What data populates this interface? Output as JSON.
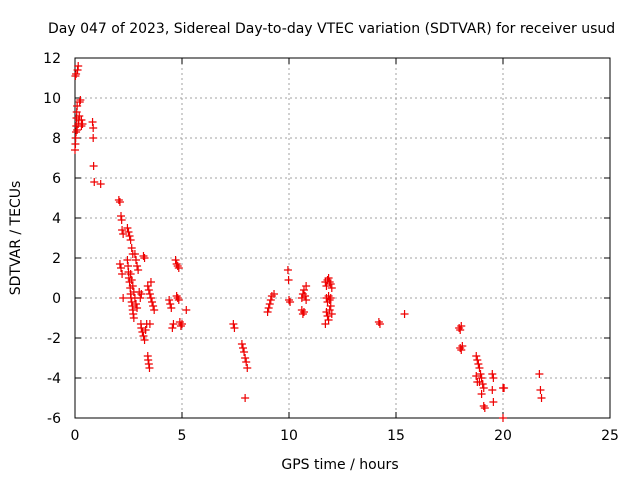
{
  "chart_data": {
    "type": "scatter",
    "title": "Day 047 of 2023, Sidereal Day-to-day VTEC variation (SDTVAR) for receiver usud",
    "xlabel": "GPS time / hours",
    "ylabel": "SDTVAR / TECUs",
    "xlim": [
      0,
      25
    ],
    "ylim": [
      -6,
      12
    ],
    "xticks": [
      0,
      5,
      10,
      15,
      20,
      25
    ],
    "yticks": [
      -6,
      -4,
      -2,
      0,
      2,
      4,
      6,
      8,
      10,
      12
    ],
    "xtick_labels": [
      "0",
      "5",
      "10",
      "15",
      "20",
      "25"
    ],
    "ytick_labels": [
      "-6",
      "-4",
      "-2",
      "0",
      "2",
      "4",
      "6",
      "8",
      "10",
      "12"
    ],
    "grid": true,
    "marker": "+",
    "color": "#ee0000",
    "series": [
      {
        "name": "SDTVAR",
        "points": [
          [
            0.0,
            7.4
          ],
          [
            0.02,
            7.7
          ],
          [
            0.03,
            8.0
          ],
          [
            0.05,
            8.3
          ],
          [
            0.06,
            8.6
          ],
          [
            0.07,
            9.0
          ],
          [
            0.08,
            9.3
          ],
          [
            0.1,
            9.6
          ],
          [
            0.02,
            11.1
          ],
          [
            0.05,
            11.2
          ],
          [
            0.12,
            11.4
          ],
          [
            0.15,
            11.6
          ],
          [
            0.1,
            8.4
          ],
          [
            0.15,
            8.7
          ],
          [
            0.18,
            8.9
          ],
          [
            0.2,
            9.1
          ],
          [
            0.22,
            9.8
          ],
          [
            0.25,
            9.9
          ],
          [
            0.3,
            8.6
          ],
          [
            0.3,
            8.9
          ],
          [
            0.35,
            8.7
          ],
          [
            0.82,
            8.8
          ],
          [
            0.85,
            8.5
          ],
          [
            0.85,
            8.0
          ],
          [
            0.87,
            6.6
          ],
          [
            0.9,
            5.8
          ],
          [
            1.2,
            5.7
          ],
          [
            2.05,
            4.9
          ],
          [
            2.1,
            4.8
          ],
          [
            2.15,
            4.1
          ],
          [
            2.18,
            3.9
          ],
          [
            2.2,
            3.4
          ],
          [
            2.25,
            3.2
          ],
          [
            2.1,
            1.7
          ],
          [
            2.15,
            1.5
          ],
          [
            2.2,
            1.2
          ],
          [
            2.25,
            0.0
          ],
          [
            2.45,
            3.5
          ],
          [
            2.5,
            3.3
          ],
          [
            2.55,
            3.1
          ],
          [
            2.6,
            2.9
          ],
          [
            2.65,
            2.5
          ],
          [
            2.7,
            2.2
          ],
          [
            2.45,
            1.9
          ],
          [
            2.48,
            1.6
          ],
          [
            2.5,
            1.3
          ],
          [
            2.52,
            1.0
          ],
          [
            2.55,
            0.8
          ],
          [
            2.58,
            0.5
          ],
          [
            2.6,
            0.2
          ],
          [
            2.62,
            0.0
          ],
          [
            2.65,
            -0.2
          ],
          [
            2.68,
            -0.4
          ],
          [
            2.7,
            -0.6
          ],
          [
            2.72,
            -0.8
          ],
          [
            2.75,
            -1.0
          ],
          [
            2.6,
            1.2
          ],
          [
            2.65,
            0.9
          ],
          [
            2.7,
            0.6
          ],
          [
            2.75,
            0.3
          ],
          [
            2.8,
            0.0
          ],
          [
            2.85,
            -0.3
          ],
          [
            2.9,
            -0.5
          ],
          [
            2.8,
            2.2
          ],
          [
            2.85,
            1.9
          ],
          [
            2.9,
            1.6
          ],
          [
            2.95,
            1.4
          ],
          [
            3.0,
            0.3
          ],
          [
            3.05,
            0.0
          ],
          [
            3.08,
            -1.3
          ],
          [
            3.1,
            -1.5
          ],
          [
            3.15,
            -1.7
          ],
          [
            3.2,
            -1.9
          ],
          [
            3.25,
            -2.1
          ],
          [
            3.3,
            -1.6
          ],
          [
            3.35,
            -1.3
          ],
          [
            3.1,
            0.2
          ],
          [
            3.2,
            2.1
          ],
          [
            3.25,
            2.0
          ],
          [
            3.4,
            -2.9
          ],
          [
            3.42,
            -3.1
          ],
          [
            3.45,
            -3.3
          ],
          [
            3.48,
            -3.5
          ],
          [
            3.5,
            -1.3
          ],
          [
            3.4,
            0.6
          ],
          [
            3.45,
            0.4
          ],
          [
            3.5,
            0.2
          ],
          [
            3.55,
            0.0
          ],
          [
            3.6,
            -0.2
          ],
          [
            3.65,
            -0.4
          ],
          [
            3.7,
            -0.6
          ],
          [
            3.55,
            0.8
          ],
          [
            4.4,
            -0.1
          ],
          [
            4.45,
            -0.3
          ],
          [
            4.5,
            -0.5
          ],
          [
            4.55,
            -1.5
          ],
          [
            4.6,
            -1.3
          ],
          [
            4.7,
            1.9
          ],
          [
            4.75,
            1.7
          ],
          [
            4.8,
            1.6
          ],
          [
            4.85,
            1.5
          ],
          [
            4.75,
            0.1
          ],
          [
            4.8,
            0.0
          ],
          [
            4.85,
            -0.1
          ],
          [
            4.9,
            -1.2
          ],
          [
            4.95,
            -1.4
          ],
          [
            5.0,
            -1.3
          ],
          [
            5.2,
            -0.6
          ],
          [
            7.4,
            -1.3
          ],
          [
            7.45,
            -1.5
          ],
          [
            7.8,
            -2.3
          ],
          [
            7.85,
            -2.5
          ],
          [
            7.9,
            -2.7
          ],
          [
            7.95,
            -3.0
          ],
          [
            8.0,
            -3.2
          ],
          [
            8.05,
            -3.5
          ],
          [
            7.95,
            -5.0
          ],
          [
            9.0,
            -0.7
          ],
          [
            9.05,
            -0.5
          ],
          [
            9.1,
            -0.3
          ],
          [
            9.15,
            -0.1
          ],
          [
            9.2,
            0.1
          ],
          [
            9.3,
            0.2
          ],
          [
            9.95,
            1.4
          ],
          [
            9.98,
            0.9
          ],
          [
            10.0,
            -0.1
          ],
          [
            10.05,
            -0.2
          ],
          [
            10.6,
            0.0
          ],
          [
            10.65,
            0.2
          ],
          [
            10.7,
            0.4
          ],
          [
            10.75,
            0.1
          ],
          [
            10.8,
            -0.1
          ],
          [
            10.6,
            -0.6
          ],
          [
            10.65,
            -0.8
          ],
          [
            10.7,
            -0.7
          ],
          [
            10.8,
            0.6
          ],
          [
            11.7,
            0.8
          ],
          [
            11.75,
            0.6
          ],
          [
            11.8,
            0.9
          ],
          [
            11.85,
            1.0
          ],
          [
            11.9,
            0.8
          ],
          [
            11.95,
            0.7
          ],
          [
            11.75,
            0.0
          ],
          [
            11.8,
            -0.2
          ],
          [
            11.85,
            0.1
          ],
          [
            11.9,
            -0.1
          ],
          [
            11.95,
            0.0
          ],
          [
            11.75,
            -0.7
          ],
          [
            11.8,
            -0.9
          ],
          [
            11.85,
            -1.1
          ],
          [
            11.7,
            -1.3
          ],
          [
            11.9,
            -0.6
          ],
          [
            11.95,
            -0.4
          ],
          [
            12.0,
            -0.8
          ],
          [
            12.0,
            0.5
          ],
          [
            14.2,
            -1.2
          ],
          [
            14.25,
            -1.3
          ],
          [
            15.4,
            -0.8
          ],
          [
            17.95,
            -1.5
          ],
          [
            18.0,
            -1.6
          ],
          [
            18.05,
            -1.4
          ],
          [
            18.0,
            -2.5
          ],
          [
            18.05,
            -2.6
          ],
          [
            18.1,
            -2.4
          ],
          [
            18.75,
            -2.9
          ],
          [
            18.8,
            -3.1
          ],
          [
            18.85,
            -3.3
          ],
          [
            18.9,
            -3.5
          ],
          [
            18.95,
            -3.8
          ],
          [
            19.0,
            -4.0
          ],
          [
            19.05,
            -4.3
          ],
          [
            19.1,
            -4.5
          ],
          [
            18.9,
            -4.2
          ],
          [
            19.0,
            -4.8
          ],
          [
            19.1,
            -5.4
          ],
          [
            19.15,
            -5.5
          ],
          [
            18.75,
            -3.9
          ],
          [
            18.8,
            -4.2
          ],
          [
            19.5,
            -3.8
          ],
          [
            19.55,
            -4.0
          ],
          [
            19.5,
            -4.6
          ],
          [
            19.55,
            -5.2
          ],
          [
            20.0,
            -4.5
          ],
          [
            20.05,
            -4.5
          ],
          [
            20.0,
            -6.0
          ],
          [
            21.7,
            -3.8
          ],
          [
            21.75,
            -4.6
          ],
          [
            21.8,
            -5.0
          ]
        ]
      }
    ]
  }
}
